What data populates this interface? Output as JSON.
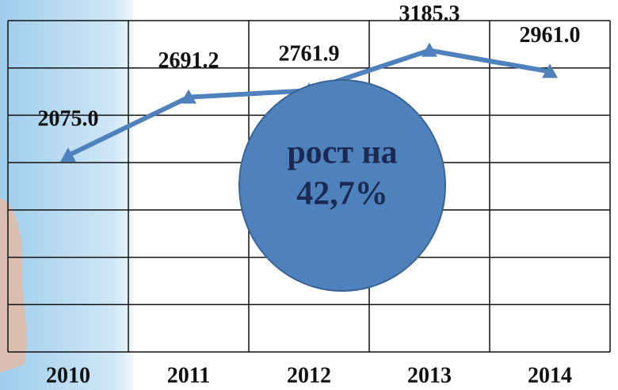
{
  "chart_data": {
    "type": "line",
    "categories": [
      "2010",
      "2011",
      "2012",
      "2013",
      "2014"
    ],
    "series": [
      {
        "name": "",
        "color": "#4f81bd",
        "values": [
          2075.0,
          2691.2,
          2761.9,
          3185.3,
          2961.0
        ],
        "value_labels": [
          "2075.0",
          "2691.2",
          "2761.9",
          "3185.3",
          "2961.0"
        ]
      }
    ],
    "ylim": [
      0,
      3500
    ],
    "yticks": [
      0,
      500,
      1000,
      1500,
      2000,
      2500,
      3000,
      3500
    ],
    "grid": true,
    "annotation": [
      "рост на",
      "42,7%"
    ]
  }
}
